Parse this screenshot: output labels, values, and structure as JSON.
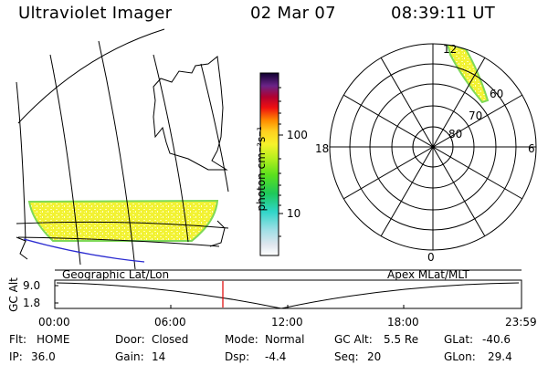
{
  "header": {
    "title": "Ultraviolet Imager",
    "date": "02 Mar 07",
    "time": "08:39:11 UT"
  },
  "colorbar": {
    "label": "photon cm⁻²s⁻¹",
    "ticks": [
      "100",
      "10"
    ]
  },
  "polar": {
    "mlt_labels": [
      "12",
      "18",
      "6",
      "0"
    ],
    "lat_labels": [
      "60",
      "70",
      "80"
    ]
  },
  "panel_labels": {
    "left": "Geographic Lat/Lon",
    "right": "Apex MLat/MLT"
  },
  "altitude_plot": {
    "ylabel": "GC Alt",
    "yticks": [
      "9.0",
      "1.8"
    ],
    "xticks": [
      "00:00",
      "06:00",
      "12:00",
      "18:00",
      "23:59"
    ],
    "current_time_marker": "08:39"
  },
  "status": {
    "row1": [
      {
        "key": "Flt:",
        "value": "HOME"
      },
      {
        "key": "Door:",
        "value": "Closed"
      },
      {
        "key": "Mode:",
        "value": "Normal"
      },
      {
        "key": "GC Alt:",
        "value": "5.5 Re"
      },
      {
        "key": "GLat:",
        "value": "-40.6"
      }
    ],
    "row2": [
      {
        "key": "IP:",
        "value": "36.0"
      },
      {
        "key": "Gain:",
        "value": "14"
      },
      {
        "key": "Dsp:",
        "value": "-4.4"
      },
      {
        "key": "Seq:",
        "value": "20"
      },
      {
        "key": "GLon:",
        "value": "29.4"
      }
    ]
  },
  "colors": {
    "aurora_fill": "#f2f233",
    "aurora_edge": "#7ed957",
    "marker": "#e00000",
    "coast": "#2a2ad0"
  }
}
